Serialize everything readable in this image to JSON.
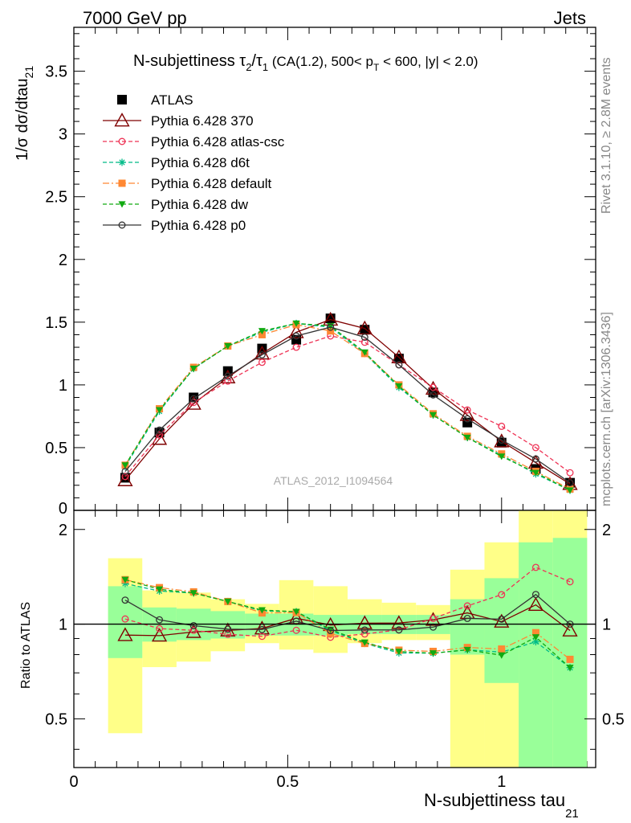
{
  "header": {
    "left": "7000 GeV pp",
    "right": "Jets"
  },
  "side_labels": {
    "rivet": "Rivet 3.1.10, ≥ 2.8M events",
    "mcplots": "mcplots.cern.ch [arXiv:1306.3436]"
  },
  "watermark": "ATLAS_2012_I1094564",
  "chart_data": {
    "type": "line",
    "title": {
      "main": "N-subjettiness ",
      "ratio_num": "τ",
      "ratio_num_sub": "2",
      "ratio_slash": "/",
      "ratio_den": "τ",
      "ratio_den_sub": "1",
      "details_1": " (CA(1.2), 500< p",
      "details_sub": "T",
      "details_2": " < 600, |y| < 2.0)"
    },
    "ylabel": {
      "main": "1/σ dσ/dtau",
      "sub": "21"
    },
    "xlabel": {
      "main": "N-subjettiness tau",
      "sub": "21"
    },
    "ratio_ylabel": "Ratio to ATLAS",
    "xlim": [
      0,
      1.22
    ],
    "ylim": [
      0,
      3.85
    ],
    "ratio_ylim": [
      0.35,
      2.3
    ],
    "ratio_yscale": "log",
    "legend_position": "top-left",
    "x_ticks": [
      {
        "value": 0,
        "label": "0"
      },
      {
        "value": 0.5,
        "label": "0.5"
      },
      {
        "value": 1,
        "label": "1"
      }
    ],
    "y_ticks": [
      {
        "value": 0.5,
        "label": "0.5"
      },
      {
        "value": 1,
        "label": "1"
      },
      {
        "value": 1.5,
        "label": "1.5"
      },
      {
        "value": 2,
        "label": "2"
      },
      {
        "value": 2.5,
        "label": "2.5"
      },
      {
        "value": 3,
        "label": "3"
      },
      {
        "value": 3.5,
        "label": "3.5"
      }
    ],
    "y_zero_label": "0",
    "ratio_y_ticks": [
      {
        "value": 0.5,
        "label": "0.5"
      },
      {
        "value": 1,
        "label": "1"
      },
      {
        "value": 2,
        "label": "2"
      }
    ],
    "bin_edges": [
      0.08,
      0.16,
      0.24,
      0.32,
      0.4,
      0.48,
      0.56,
      0.64,
      0.72,
      0.8,
      0.88,
      0.96,
      1.04,
      1.12,
      1.2
    ],
    "x": [
      0.12,
      0.2,
      0.28,
      0.36,
      0.44,
      0.52,
      0.6,
      0.68,
      0.76,
      0.84,
      0.92,
      1.0,
      1.08,
      1.16
    ],
    "ratio_bands": {
      "stat_colour": "#99ff99",
      "total_colour": "#ffff88",
      "stat": [
        [
          0.78,
          1.32
        ],
        [
          0.88,
          1.13
        ],
        [
          0.89,
          1.12
        ],
        [
          0.9,
          1.1
        ],
        [
          0.92,
          1.08
        ],
        [
          0.92,
          1.08
        ],
        [
          0.92,
          1.07
        ],
        [
          0.93,
          1.07
        ],
        [
          0.93,
          1.07
        ],
        [
          0.93,
          1.07
        ],
        [
          0.8,
          1.2
        ],
        [
          0.65,
          1.4
        ],
        [
          0.35,
          1.82
        ],
        [
          0.35,
          1.88
        ]
      ],
      "total": [
        [
          0.45,
          1.62
        ],
        [
          0.73,
          1.28
        ],
        [
          0.76,
          1.26
        ],
        [
          0.82,
          1.2
        ],
        [
          0.87,
          1.16
        ],
        [
          0.83,
          1.38
        ],
        [
          0.81,
          1.32
        ],
        [
          0.87,
          1.2
        ],
        [
          0.89,
          1.17
        ],
        [
          0.89,
          1.15
        ],
        [
          0.35,
          1.49
        ],
        [
          0.35,
          1.82
        ],
        [
          0.35,
          2.3
        ],
        [
          0.35,
          2.3
        ]
      ]
    },
    "series": [
      {
        "name": "ATLAS",
        "colour": "#000000",
        "marker": "square-filled",
        "line": "none",
        "values": [
          0.26,
          0.62,
          0.9,
          1.11,
          1.29,
          1.36,
          1.53,
          1.44,
          1.21,
          0.94,
          0.7,
          0.54,
          0.33,
          0.22
        ]
      },
      {
        "name": "Pythia 6.428 370",
        "colour": "#7f0000",
        "marker": "triangle-open",
        "line": "solid",
        "values": [
          0.24,
          0.57,
          0.85,
          1.06,
          1.25,
          1.42,
          1.52,
          1.45,
          1.22,
          0.97,
          0.76,
          0.55,
          0.38,
          0.21
        ]
      },
      {
        "name": "Pythia 6.428 atlas-csc",
        "colour": "#ee3355",
        "marker": "circle-open",
        "line": "dashed",
        "values": [
          0.27,
          0.6,
          0.86,
          1.03,
          1.18,
          1.3,
          1.39,
          1.34,
          1.16,
          0.98,
          0.8,
          0.67,
          0.5,
          0.3
        ]
      },
      {
        "name": "Pythia 6.428 d6t",
        "colour": "#00bb88",
        "marker": "star",
        "line": "dashed",
        "values": [
          0.35,
          0.79,
          1.13,
          1.31,
          1.42,
          1.49,
          1.46,
          1.25,
          0.98,
          0.76,
          0.58,
          0.44,
          0.29,
          0.16
        ]
      },
      {
        "name": "Pythia 6.428 default",
        "colour": "#ff8833",
        "marker": "square-filled",
        "line": "dashdot",
        "values": [
          0.36,
          0.81,
          1.14,
          1.31,
          1.4,
          1.48,
          1.43,
          1.25,
          1.0,
          0.77,
          0.59,
          0.45,
          0.31,
          0.17
        ]
      },
      {
        "name": "Pythia 6.428 dw",
        "colour": "#11aa11",
        "marker": "triangle-down-filled",
        "line": "dashed",
        "values": [
          0.36,
          0.8,
          1.13,
          1.31,
          1.43,
          1.49,
          1.47,
          1.26,
          0.99,
          0.76,
          0.58,
          0.43,
          0.3,
          0.16
        ]
      },
      {
        "name": "Pythia 6.428 p0",
        "colour": "#333333",
        "marker": "circle-open",
        "line": "solid",
        "values": [
          0.31,
          0.64,
          0.89,
          1.07,
          1.24,
          1.39,
          1.46,
          1.38,
          1.16,
          0.92,
          0.73,
          0.56,
          0.41,
          0.22
        ]
      }
    ]
  }
}
